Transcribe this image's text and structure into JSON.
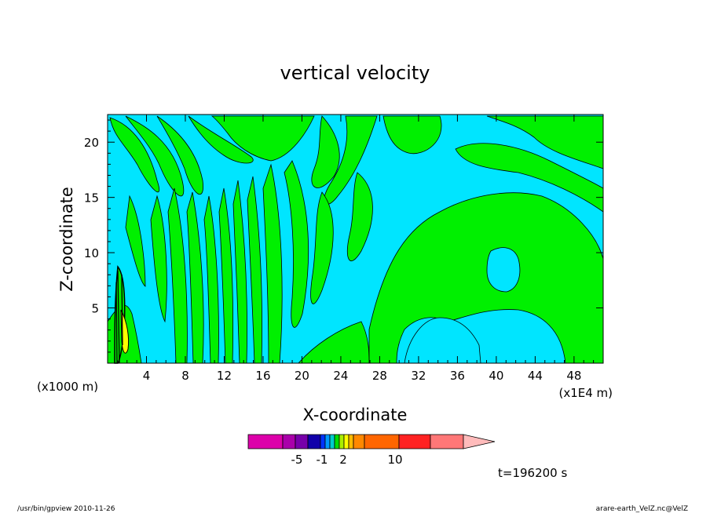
{
  "chart_data": {
    "type": "heatmap",
    "title": "vertical velocity",
    "xlabel": "X-coordinate",
    "ylabel": "Z-coordinate",
    "x_unit_left": "(x1000 m)",
    "x_unit_right": "(x1E4 m)",
    "x_ticks": [
      "4",
      "8",
      "12",
      "16",
      "20",
      "24",
      "28",
      "32",
      "36",
      "40",
      "44",
      "48"
    ],
    "y_ticks": [
      "5",
      "10",
      "15",
      "20"
    ],
    "xlim": [
      0,
      51
    ],
    "ylim": [
      0,
      22.5
    ],
    "time_label": "t=196200 s",
    "colorbar": {
      "tick_labels": [
        "-5",
        "-1",
        "2",
        "10"
      ],
      "colors": [
        "#dd00aa",
        "#aa00aa",
        "#7700aa",
        "#1100aa",
        "#0033ff",
        "#0099ff",
        "#00cccc",
        "#00dd00",
        "#aaee00",
        "#ffff00",
        "#ffbb00",
        "#ff8800",
        "#ff6600",
        "#ff2222",
        "#ff7777",
        "#ffbbbb"
      ],
      "dominant_levels": {
        "negative_small": "#00e5ff",
        "positive_small": "#00f000"
      }
    },
    "footer_left": "/usr/bin/gpview   2010-11-26",
    "footer_right": "arare-earth_VelZ.nc@VelZ"
  }
}
